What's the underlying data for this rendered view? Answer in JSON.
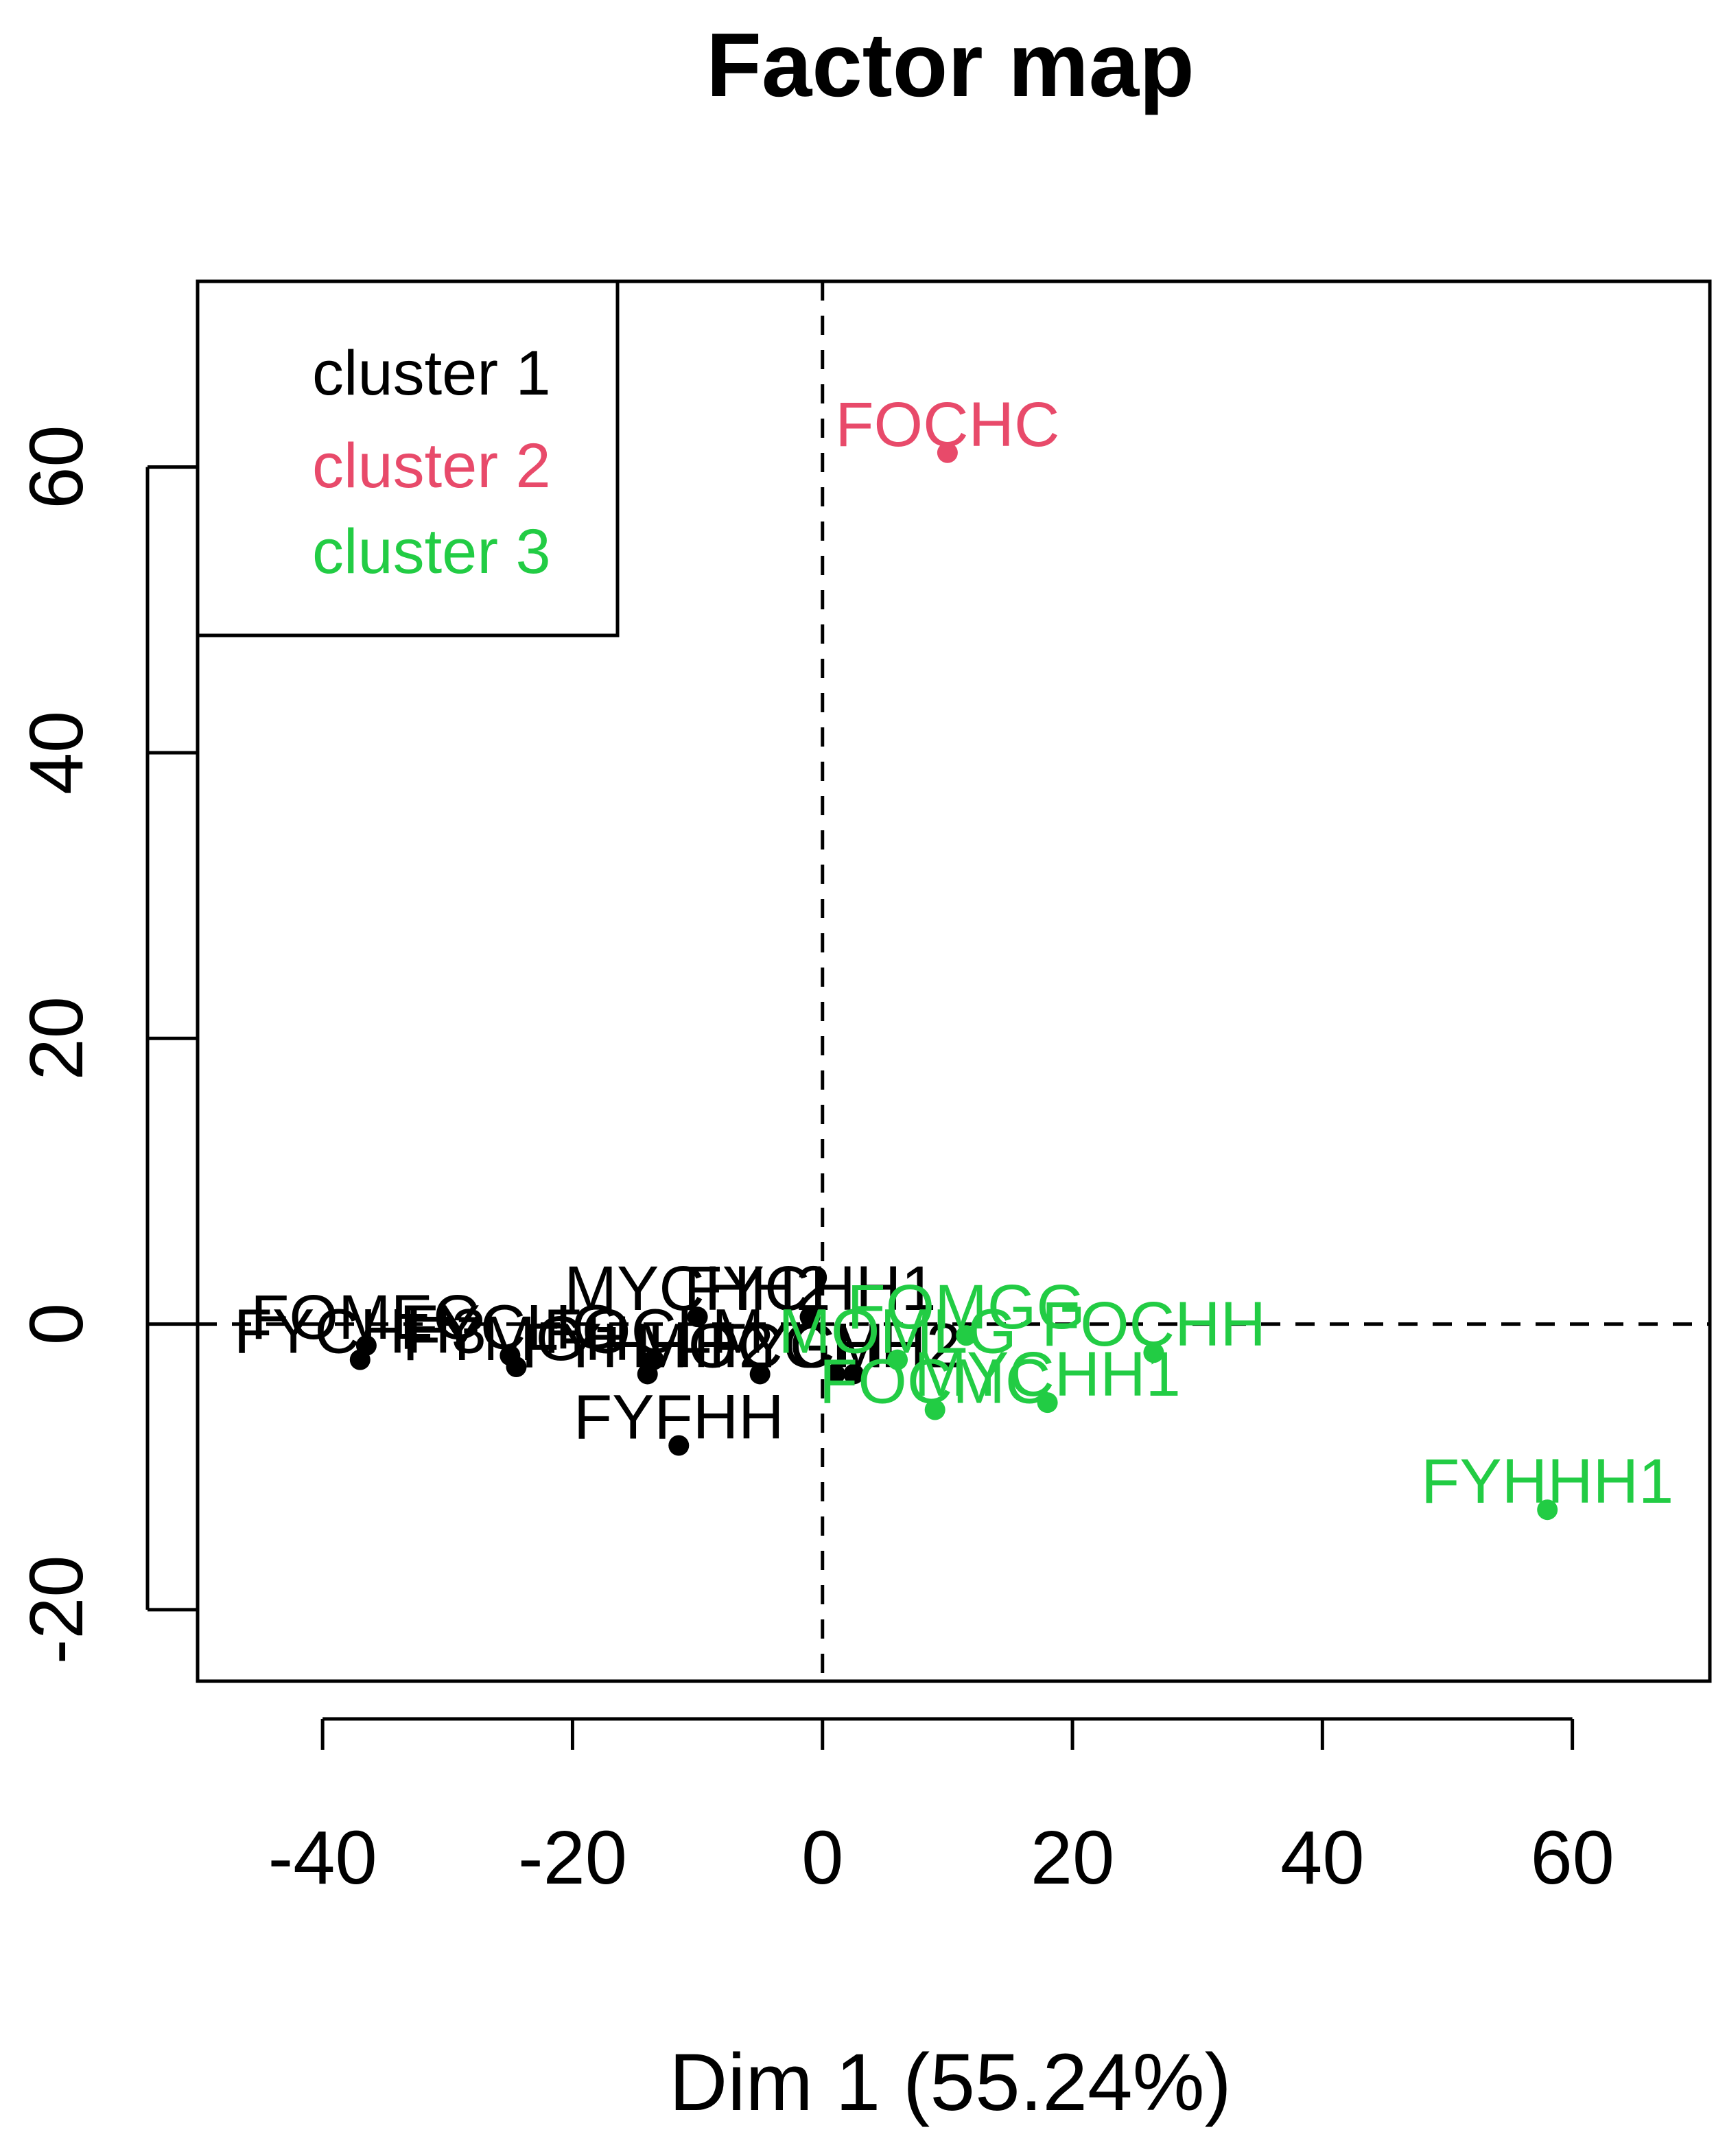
{
  "chart_data": {
    "type": "scatter",
    "title": "Factor map",
    "xlabel": "Dim 1 (55.24%)",
    "ylabel": "",
    "xlim": [
      -50,
      71
    ],
    "ylim": [
      -25,
      73
    ],
    "xticks": [
      -40,
      -20,
      0,
      20,
      40,
      60
    ],
    "yticks": [
      -20,
      0,
      20,
      40,
      60
    ],
    "xtick_labels": [
      "-40",
      "-20",
      "0",
      "20",
      "40",
      "60"
    ],
    "ytick_labels": [
      "-20",
      "0",
      "20",
      "40",
      "60"
    ],
    "reference_lines": {
      "x": 0,
      "y": 0,
      "style": "dashed"
    },
    "grid": false,
    "legend_position": "top-left",
    "series": [
      {
        "name": "cluster 1",
        "color": "#000000",
        "points": [
          {
            "label": "FOMEG",
            "x": -36.5,
            "y": -1.5
          },
          {
            "label": "FYCHH3",
            "x": -37,
            "y": -2.5
          },
          {
            "label": "FYCHG",
            "x": -25,
            "y": -2.2
          },
          {
            "label": "FYMGH",
            "x": -24.5,
            "y": -3
          },
          {
            "label": "MYCHH2",
            "x": -10,
            "y": 0.5
          },
          {
            "label": "FYHHH2",
            "x": -14,
            "y": -3.5
          },
          {
            "label": "FYFHH",
            "x": -11.5,
            "y": -8.5
          },
          {
            "label": "FOCLM",
            "x": -13.5,
            "y": -2.5
          },
          {
            "label": "MOCGM",
            "x": -5,
            "y": -3.5
          },
          {
            "label": "FYCHH1",
            "x": -1,
            "y": 0.5
          },
          {
            "label": "FYCHH2",
            "x": 1,
            "y": -3.5
          },
          {
            "label": "",
            "x": 2.5,
            "y": -3.5
          }
        ]
      },
      {
        "name": "cluster 2",
        "color": "#e84a6a",
        "points": [
          {
            "label": "FOCHC",
            "x": 10,
            "y": 61
          }
        ]
      },
      {
        "name": "cluster 3",
        "color": "#22cc44",
        "points": [
          {
            "label": "FOMGG",
            "x": 11.5,
            "y": -0.8
          },
          {
            "label": "FOCHH",
            "x": 26.5,
            "y": -2
          },
          {
            "label": "MOMLG",
            "x": 6,
            "y": -2.5
          },
          {
            "label": "FOCMC",
            "x": 9,
            "y": -6
          },
          {
            "label": "MYCHH1",
            "x": 18,
            "y": -5.5
          },
          {
            "label": "FYHHH1",
            "x": 58,
            "y": -13
          }
        ]
      }
    ]
  }
}
